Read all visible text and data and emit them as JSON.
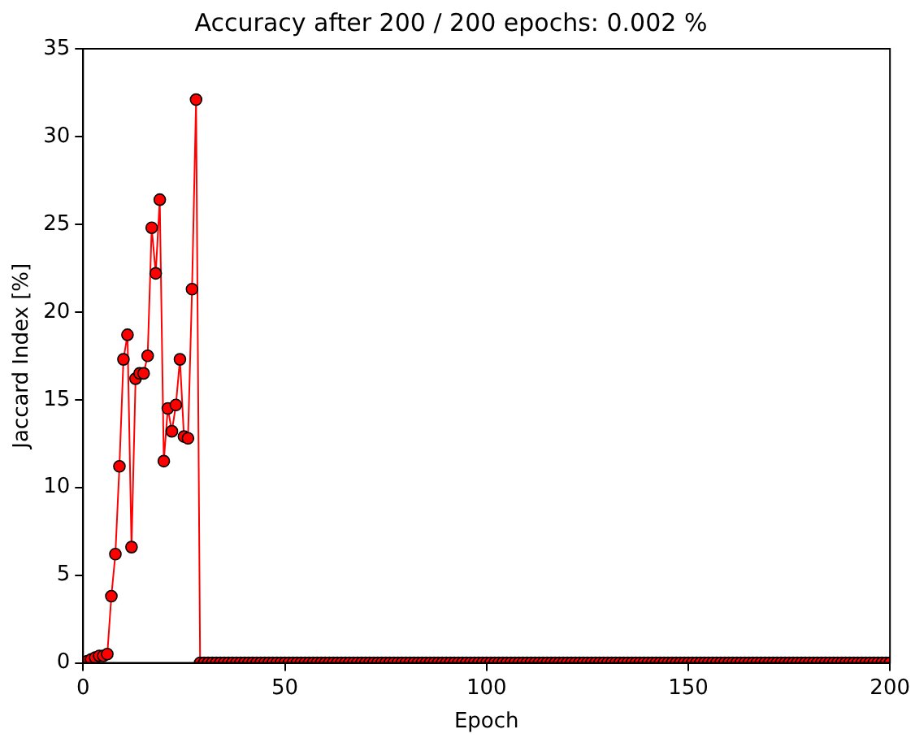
{
  "chart_data": {
    "type": "line",
    "title": "Accuracy after 200 / 200 epochs: 0.002 %",
    "xlabel": "Epoch",
    "ylabel": "Jaccard Index [%]",
    "x": [
      1,
      2,
      3,
      4,
      5,
      6,
      7,
      8,
      9,
      10,
      11,
      12,
      13,
      14,
      15,
      16,
      17,
      18,
      19,
      20,
      21,
      22,
      23,
      24,
      25,
      26,
      27,
      28,
      29,
      30,
      31,
      32,
      33,
      34,
      35,
      36,
      37,
      38,
      39,
      40,
      41,
      42,
      43,
      44,
      45,
      46,
      47,
      48,
      49,
      50,
      51,
      52,
      53,
      54,
      55,
      56,
      57,
      58,
      59,
      60,
      61,
      62,
      63,
      64,
      65,
      66,
      67,
      68,
      69,
      70,
      71,
      72,
      73,
      74,
      75,
      76,
      77,
      78,
      79,
      80,
      81,
      82,
      83,
      84,
      85,
      86,
      87,
      88,
      89,
      90,
      91,
      92,
      93,
      94,
      95,
      96,
      97,
      98,
      99,
      100,
      101,
      102,
      103,
      104,
      105,
      106,
      107,
      108,
      109,
      110,
      111,
      112,
      113,
      114,
      115,
      116,
      117,
      118,
      119,
      120,
      121,
      122,
      123,
      124,
      125,
      126,
      127,
      128,
      129,
      130,
      131,
      132,
      133,
      134,
      135,
      136,
      137,
      138,
      139,
      140,
      141,
      142,
      143,
      144,
      145,
      146,
      147,
      148,
      149,
      150,
      151,
      152,
      153,
      154,
      155,
      156,
      157,
      158,
      159,
      160,
      161,
      162,
      163,
      164,
      165,
      166,
      167,
      168,
      169,
      170,
      171,
      172,
      173,
      174,
      175,
      176,
      177,
      178,
      179,
      180,
      181,
      182,
      183,
      184,
      185,
      186,
      187,
      188,
      189,
      190,
      191,
      192,
      193,
      194,
      195,
      196,
      197,
      198,
      199,
      200
    ],
    "series": [
      {
        "color": "#ff0000",
        "values": [
          0.1,
          0.2,
          0.3,
          0.4,
          0.4,
          0.5,
          3.8,
          6.2,
          11.2,
          17.3,
          18.7,
          6.6,
          16.2,
          16.5,
          16.5,
          17.5,
          24.8,
          22.2,
          26.4,
          11.5,
          14.5,
          13.2,
          14.7,
          17.3,
          12.9,
          12.8,
          21.3,
          32.1,
          0,
          0,
          0,
          0,
          0,
          0,
          0,
          0,
          0,
          0,
          0,
          0,
          0,
          0,
          0,
          0,
          0,
          0,
          0,
          0,
          0,
          0,
          0,
          0,
          0,
          0,
          0,
          0,
          0,
          0,
          0,
          0,
          0,
          0,
          0,
          0,
          0,
          0,
          0,
          0,
          0,
          0,
          0,
          0,
          0,
          0,
          0,
          0,
          0,
          0,
          0,
          0,
          0,
          0,
          0,
          0,
          0,
          0,
          0,
          0,
          0,
          0,
          0,
          0,
          0,
          0,
          0,
          0,
          0,
          0,
          0,
          0,
          0,
          0,
          0,
          0,
          0,
          0,
          0,
          0,
          0,
          0,
          0,
          0,
          0,
          0,
          0,
          0,
          0,
          0,
          0,
          0,
          0,
          0,
          0,
          0,
          0,
          0,
          0,
          0,
          0,
          0,
          0,
          0,
          0,
          0,
          0,
          0,
          0,
          0,
          0,
          0,
          0,
          0,
          0,
          0,
          0,
          0,
          0,
          0,
          0,
          0,
          0,
          0,
          0,
          0,
          0,
          0,
          0,
          0,
          0,
          0,
          0,
          0,
          0,
          0,
          0,
          0,
          0,
          0,
          0,
          0,
          0,
          0,
          0,
          0,
          0,
          0,
          0,
          0,
          0,
          0,
          0,
          0,
          0,
          0,
          0,
          0,
          0,
          0,
          0,
          0,
          0,
          0,
          0,
          0,
          0,
          0,
          0,
          0,
          0,
          0
        ]
      }
    ],
    "xlim": [
      0,
      200
    ],
    "xticks": [
      0,
      50,
      100,
      150,
      200
    ],
    "ylim": [
      0,
      35
    ],
    "yticks": [
      0,
      5,
      10,
      15,
      20,
      25,
      30,
      35
    ],
    "grid": false,
    "legend": false,
    "marker": "circle",
    "line_style": "solid"
  }
}
